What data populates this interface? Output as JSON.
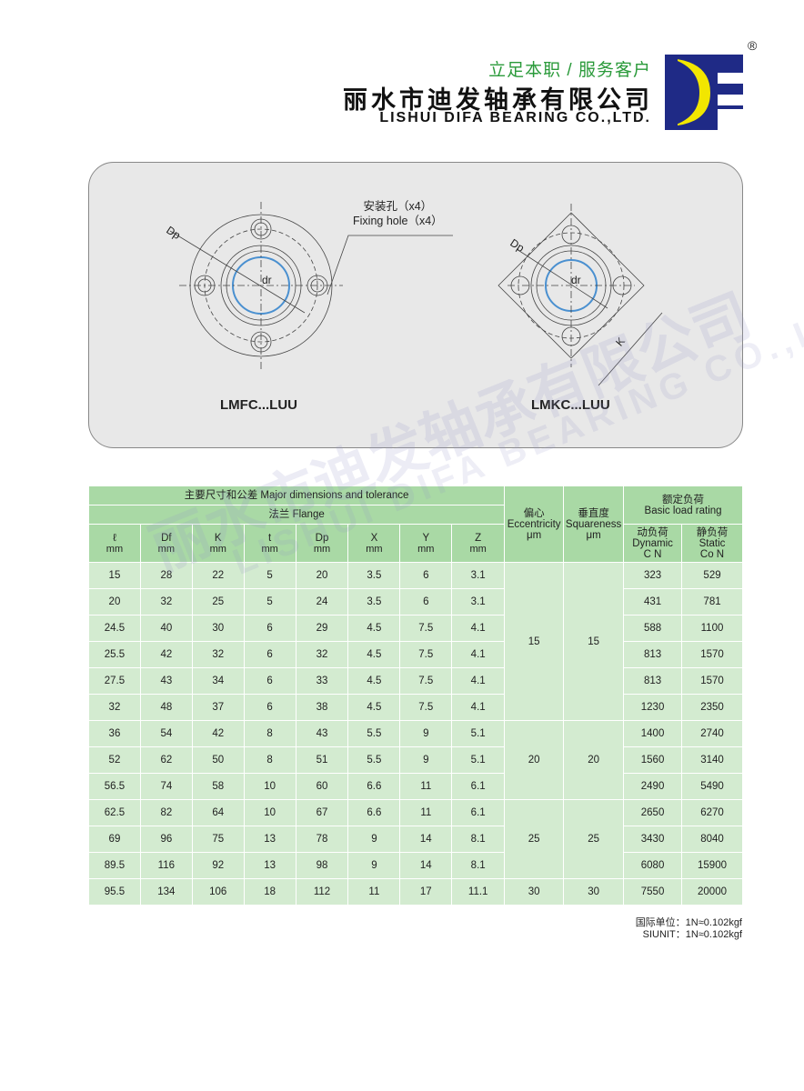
{
  "header": {
    "slogan": "立足本职 / 服务客户",
    "company_cn": "丽水市迪发轴承有限公司",
    "company_en": "LISHUI DIFA BEARING CO.,LTD.",
    "logo_letters": "DF",
    "registered": "®",
    "brand_colors": {
      "blue": "#1f2a86",
      "yellow": "#f2e600",
      "green": "#2a9a3a"
    }
  },
  "diagram": {
    "fixing_hole_cn": "安装孔（x4）",
    "fixing_hole_en": "Fixing hole（x4）",
    "dp": "Dp",
    "dr": "dr",
    "k": "K",
    "model_left": "LMFC...LUU",
    "model_right": "LMKC...LUU"
  },
  "watermark": {
    "cn": "丽水市迪发轴承有限公司",
    "en": "LISHUI DIFA BEARING CO.,LTD."
  },
  "table": {
    "group_major": "主要尺寸和公差 Major dimensions and tolerance",
    "group_flange": "法兰 Flange",
    "ecc_cn": "偏心",
    "ecc_en": "Eccentricity",
    "ecc_unit": "μm",
    "sq_cn": "垂直度",
    "sq_en": "Squareness",
    "sq_unit": "μm",
    "load_cn": "额定负荷",
    "load_en": "Basic load rating",
    "dyn_cn": "动负荷",
    "dyn_en": "Dynamic",
    "dyn_unit": "C N",
    "sta_cn": "静负荷",
    "sta_en": "Static",
    "sta_unit": "Co N",
    "columns": [
      {
        "h": "ℓ",
        "u": "mm"
      },
      {
        "h": "Df",
        "u": "mm"
      },
      {
        "h": "K",
        "u": "mm"
      },
      {
        "h": "t",
        "u": "mm"
      },
      {
        "h": "Dp",
        "u": "mm"
      },
      {
        "h": "X",
        "u": "mm"
      },
      {
        "h": "Y",
        "u": "mm"
      },
      {
        "h": "Z",
        "u": "mm"
      }
    ],
    "rows": [
      [
        "15",
        "28",
        "22",
        "5",
        "20",
        "3.5",
        "6",
        "3.1",
        "323",
        "529"
      ],
      [
        "20",
        "32",
        "25",
        "5",
        "24",
        "3.5",
        "6",
        "3.1",
        "431",
        "781"
      ],
      [
        "24.5",
        "40",
        "30",
        "6",
        "29",
        "4.5",
        "7.5",
        "4.1",
        "588",
        "1100"
      ],
      [
        "25.5",
        "42",
        "32",
        "6",
        "32",
        "4.5",
        "7.5",
        "4.1",
        "813",
        "1570"
      ],
      [
        "27.5",
        "43",
        "34",
        "6",
        "33",
        "4.5",
        "7.5",
        "4.1",
        "813",
        "1570"
      ],
      [
        "32",
        "48",
        "37",
        "6",
        "38",
        "4.5",
        "7.5",
        "4.1",
        "1230",
        "2350"
      ],
      [
        "36",
        "54",
        "42",
        "8",
        "43",
        "5.5",
        "9",
        "5.1",
        "1400",
        "2740"
      ],
      [
        "52",
        "62",
        "50",
        "8",
        "51",
        "5.5",
        "9",
        "5.1",
        "1560",
        "3140"
      ],
      [
        "56.5",
        "74",
        "58",
        "10",
        "60",
        "6.6",
        "11",
        "6.1",
        "2490",
        "5490"
      ],
      [
        "62.5",
        "82",
        "64",
        "10",
        "67",
        "6.6",
        "11",
        "6.1",
        "2650",
        "6270"
      ],
      [
        "69",
        "96",
        "75",
        "13",
        "78",
        "9",
        "14",
        "8.1",
        "3430",
        "8040"
      ],
      [
        "89.5",
        "116",
        "92",
        "13",
        "98",
        "9",
        "14",
        "8.1",
        "6080",
        "15900"
      ],
      [
        "95.5",
        "134",
        "106",
        "18",
        "112",
        "11",
        "17",
        "11.1",
        "7550",
        "20000"
      ]
    ],
    "ecc_groups": [
      {
        "value": "15",
        "span": 6
      },
      {
        "value": "20",
        "span": 3
      },
      {
        "value": "25",
        "span": 3
      },
      {
        "value": "30",
        "span": 1
      }
    ],
    "sq_groups": [
      {
        "value": "15",
        "span": 6
      },
      {
        "value": "20",
        "span": 3
      },
      {
        "value": "25",
        "span": 3
      },
      {
        "value": "30",
        "span": 1
      }
    ]
  },
  "notes": {
    "cn": "国际单位：1N≈0.102kgf",
    "en": "SIUNIT：1N≈0.102kgf"
  }
}
